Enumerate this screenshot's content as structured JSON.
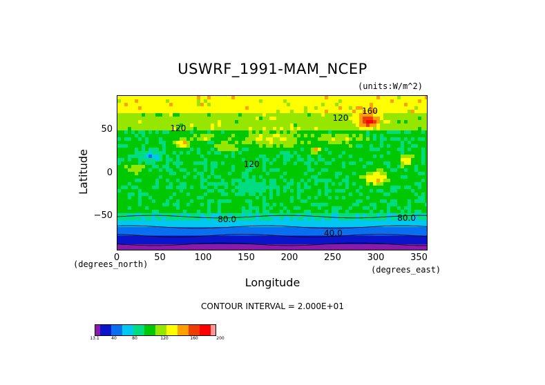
{
  "chart_data": {
    "type": "heatmap",
    "title": "USWRF_1991-MAM_NCEP",
    "units": "(units:W/m^2)",
    "xlabel": "Longitude",
    "ylabel": "Latitude",
    "x_unit_label": "(degrees_east)",
    "y_unit_label": "(degrees_north)",
    "xlim": [
      0,
      360
    ],
    "ylim": [
      -90,
      90
    ],
    "x_ticks": [
      "0",
      "50",
      "100",
      "150",
      "200",
      "250",
      "300",
      "350"
    ],
    "y_ticks": [
      "50",
      "0",
      "−50"
    ],
    "contour_interval_text": "CONTOUR INTERVAL = 2.000E+01",
    "contour_labels": [
      "160",
      "120",
      "80.0",
      "80.0",
      "40.0",
      "120",
      "120"
    ],
    "colorbar": {
      "levels": [
        13.1,
        20,
        40,
        60,
        80,
        100,
        120,
        140,
        160,
        180,
        200,
        220
      ],
      "tick_labels": [
        "13.1",
        "40",
        "80",
        "120",
        "160",
        "200"
      ],
      "colors": [
        "#8a1aa8",
        "#0a14c8",
        "#0a6ef0",
        "#00c8f0",
        "#00dc82",
        "#00c800",
        "#96e600",
        "#ffff00",
        "#ffa000",
        "#f03c00",
        "#ff0000",
        "#ff9696"
      ]
    },
    "bands": [
      {
        "lat_range": [
          -90,
          -82
        ],
        "value_range": [
          13.1,
          20
        ]
      },
      {
        "lat_range": [
          -82,
          -72
        ],
        "value_range": [
          20,
          40
        ]
      },
      {
        "lat_range": [
          -72,
          -62
        ],
        "value_range": [
          40,
          60
        ]
      },
      {
        "lat_range": [
          -62,
          -50
        ],
        "value_range": [
          60,
          80
        ]
      },
      {
        "lat_range": [
          -50,
          60
        ],
        "value_range": [
          80,
          140
        ]
      },
      {
        "lat_range": [
          60,
          90
        ],
        "value_range": [
          120,
          200
        ]
      }
    ]
  }
}
